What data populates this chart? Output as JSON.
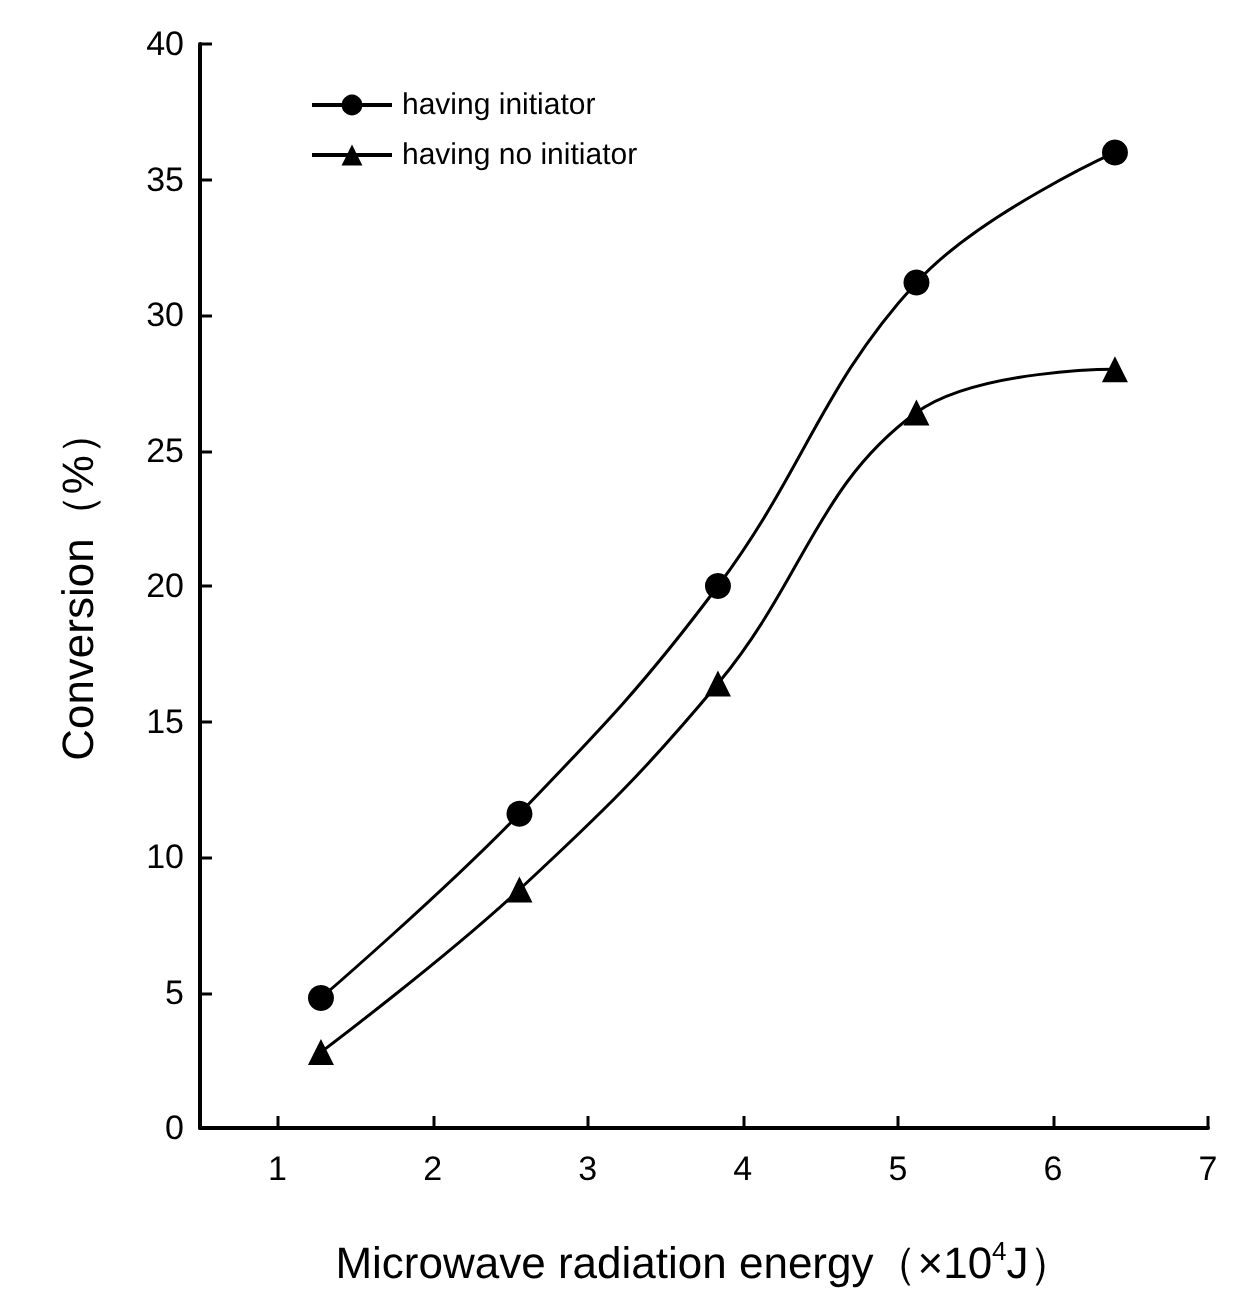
{
  "chart_data": {
    "type": "line",
    "xlabel": "Microwave radiation energy（×10$^{4}$J）",
    "ylabel": "Conversion（%）",
    "x": [
      1.28,
      2.56,
      3.84,
      5.12,
      6.4
    ],
    "series": [
      {
        "name": "having initiator",
        "color": "#000000",
        "marker": "circle",
        "values": [
          4.8,
          11.6,
          20.0,
          31.2,
          36.0
        ]
      },
      {
        "name": "having no initiator",
        "color": "#000000",
        "marker": "triangle",
        "values": [
          2.8,
          8.8,
          16.4,
          26.4,
          28.0
        ]
      }
    ],
    "xlim": [
      0.5,
      7
    ],
    "xticks": [
      1,
      2,
      3,
      4,
      5,
      6,
      7
    ],
    "ylim": [
      0,
      40
    ],
    "yticks": [
      0,
      5,
      10,
      15,
      20,
      25,
      30,
      35,
      40
    ],
    "grid": false,
    "legend": "top left",
    "line_style": "solid"
  }
}
